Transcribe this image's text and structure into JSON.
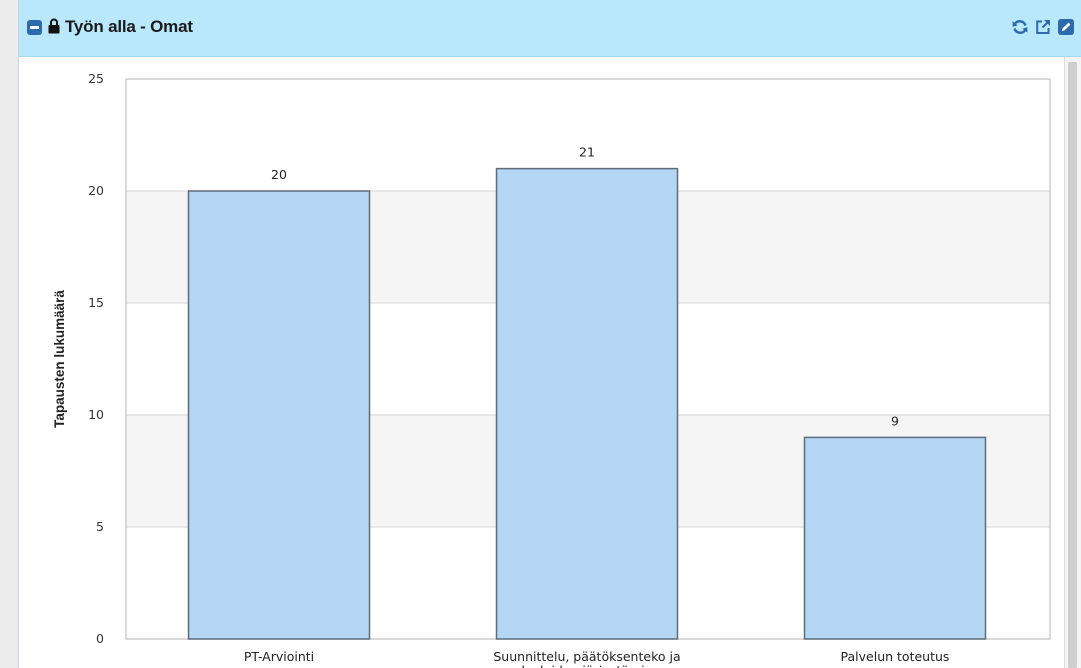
{
  "panel": {
    "title": "Työn alla - Omat",
    "icons": {
      "collapse": "minus-square-icon",
      "lock": "lock-icon",
      "refresh": "refresh-icon",
      "external": "external-link-icon",
      "edit": "edit-icon"
    },
    "colors": {
      "header_bg": "#b9e7fb",
      "icon_blue": "#2a6aad"
    }
  },
  "chart_data": {
    "type": "bar",
    "categories": [
      "PT-Arviointi",
      "Suunnittelu, päätöksenteko ja palveluiden järjestäminen",
      "Palvelun toteutus"
    ],
    "category_lines": [
      [
        "PT-Arviointi"
      ],
      [
        "Suunnittelu, päätöksenteko ja",
        "palveluiden järjestäminen"
      ],
      [
        "Palvelun toteutus"
      ]
    ],
    "values": [
      20,
      21,
      9
    ],
    "data_labels": [
      "20",
      "21",
      "9"
    ],
    "ylabel": "Tapausten lukumäärä",
    "xlabel": "",
    "title": "",
    "ylim": [
      0,
      25
    ],
    "yticks": [
      0,
      5,
      10,
      15,
      20,
      25
    ],
    "ytick_labels": [
      "0",
      "5",
      "10",
      "15",
      "20",
      "25"
    ],
    "grid": true,
    "legend": "none",
    "bar_color": "#b3d6f5",
    "bar_border": "#5f6b76",
    "band_color": "#f5f5f5"
  }
}
